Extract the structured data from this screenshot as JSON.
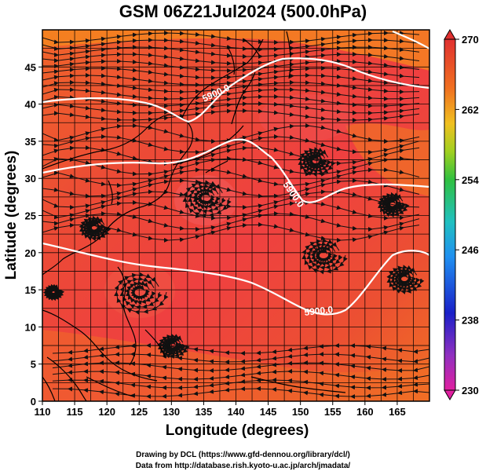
{
  "title": "GSM 06Z21Jul2024 (500.0hPa)",
  "axes": {
    "xlabel": "Longitude (degrees)",
    "ylabel": "Latitude (degrees)",
    "x_ticks": [
      "110",
      "115",
      "120",
      "125",
      "130",
      "135",
      "140",
      "145",
      "150",
      "155",
      "160",
      "165"
    ],
    "y_ticks": [
      "0",
      "5",
      "10",
      "15",
      "20",
      "25",
      "30",
      "35",
      "40",
      "45"
    ],
    "xlim": [
      110,
      170
    ],
    "ylim": [
      0,
      50
    ]
  },
  "colorbar": {
    "labels": [
      "270",
      "262",
      "254",
      "246",
      "238",
      "230"
    ],
    "range": [
      230,
      270
    ],
    "colors": [
      "#e02060",
      "#9040c0",
      "#2030d0",
      "#2090f0",
      "#20c0c0",
      "#40c040",
      "#a0d020",
      "#f0c020",
      "#f07020",
      "#e03030"
    ]
  },
  "contours": [
    {
      "label": "5900.0",
      "value": 5900
    },
    {
      "label": "5900.0",
      "value": 5900
    },
    {
      "label": "5900.0",
      "value": 5900
    }
  ],
  "credits": {
    "line1": "Drawing by DCL (https://www.gfd-dennou.org/library/dcl/)",
    "line2": "Data from http://database.rish.kyoto-u.ac.jp/arch/jmadata/"
  }
}
